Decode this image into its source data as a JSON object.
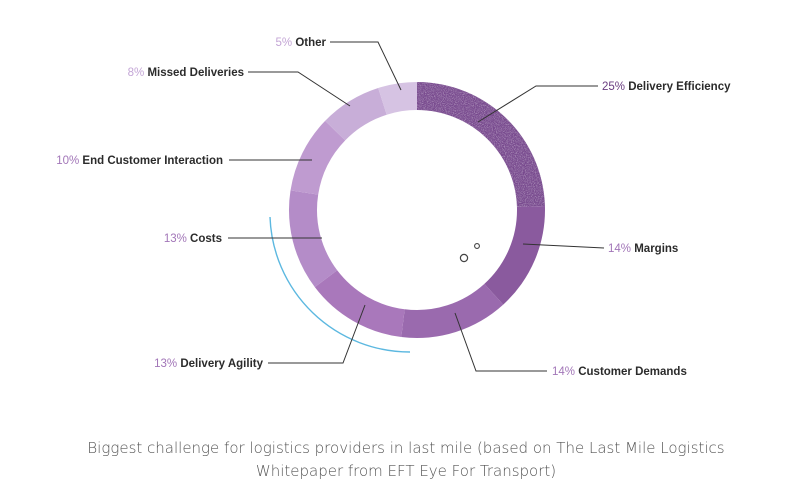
{
  "caption": {
    "line1": "Biggest challenge for logistics providers in last mile (based on The Last Mile Logistics",
    "line2": "Whitepaper from EFT Eye For Transport)"
  },
  "chart_data": {
    "type": "pie",
    "style": "donut",
    "start": "top, clockwise",
    "categories": [
      "Delivery Efficiency",
      "Margins",
      "Customer Demands",
      "Delivery Agility",
      "Costs",
      "End Customer Interaction",
      "Missed Deliveries",
      "Other"
    ],
    "values": [
      25,
      14,
      14,
      13,
      13,
      10,
      8,
      5
    ],
    "unit": "%",
    "colors": [
      "#784a8e",
      "#8a5a9e",
      "#9a6aae",
      "#a978bb",
      "#b48cc8",
      "#bf9bd0",
      "#c8aed8",
      "#d6c3e3"
    ],
    "accent_arc_color": "#5cb8e0",
    "labels": [
      {
        "pct": "25%",
        "name": "Delivery Efficiency"
      },
      {
        "pct": "14%",
        "name": "Margins"
      },
      {
        "pct": "14%",
        "name": "Customer Demands"
      },
      {
        "pct": "13%",
        "name": "Delivery Agility"
      },
      {
        "pct": "13%",
        "name": "Costs"
      },
      {
        "pct": "10%",
        "name": "End Customer Interaction"
      },
      {
        "pct": "8%",
        "name": "Missed Deliveries"
      },
      {
        "pct": "5%",
        "name": "Other"
      }
    ]
  }
}
